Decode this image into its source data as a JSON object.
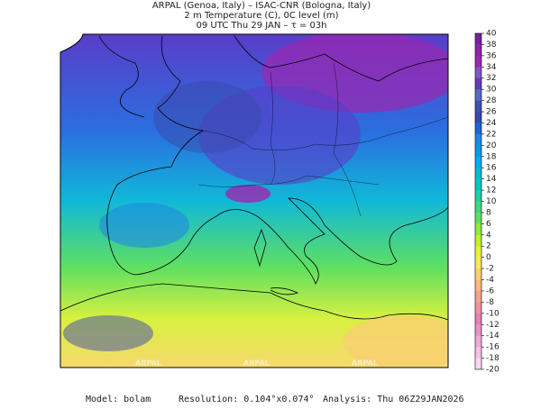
{
  "header": {
    "line1": "ARPAL (Genoa, Italy)  –  ISAC-CNR (Bologna, Italy)",
    "line2": "2 m Temperature (C), 0C level (m)",
    "line3": "09 UTC Thu 29 JAN  –  τ = 03h"
  },
  "colorbar": {
    "levels": [
      40,
      38,
      36,
      34,
      32,
      30,
      28,
      26,
      24,
      22,
      20,
      18,
      16,
      14,
      12,
      10,
      8,
      6,
      4,
      2,
      0,
      -2,
      -4,
      -6,
      -8,
      -10,
      -12,
      -14,
      -16,
      -18,
      -20
    ],
    "colors": [
      "#7b1fa2",
      "#8e24aa",
      "#9c27b0",
      "#7e57c2",
      "#673ab7",
      "#5c6bc0",
      "#3f51b5",
      "#3949ab",
      "#1e64d8",
      "#1e88e5",
      "#039be5",
      "#03a9f4",
      "#00bcd4",
      "#00c8c0",
      "#20d0a0",
      "#40d880",
      "#60e060",
      "#90e840",
      "#c0f030",
      "#e8f040",
      "#f8e860",
      "#f8d070",
      "#f8b880",
      "#f8a090",
      "#f090a0",
      "#e880b0",
      "#e890c8",
      "#f0a8d8",
      "#f4c0e4",
      "#f8d8f0"
    ]
  },
  "watermark": "ARPAL",
  "footer": {
    "model": "Model: bolam",
    "resolution": "Resolution: 0.104°x0.074°",
    "analysis": "Analysis: Thu 06Z29JAN2026"
  }
}
